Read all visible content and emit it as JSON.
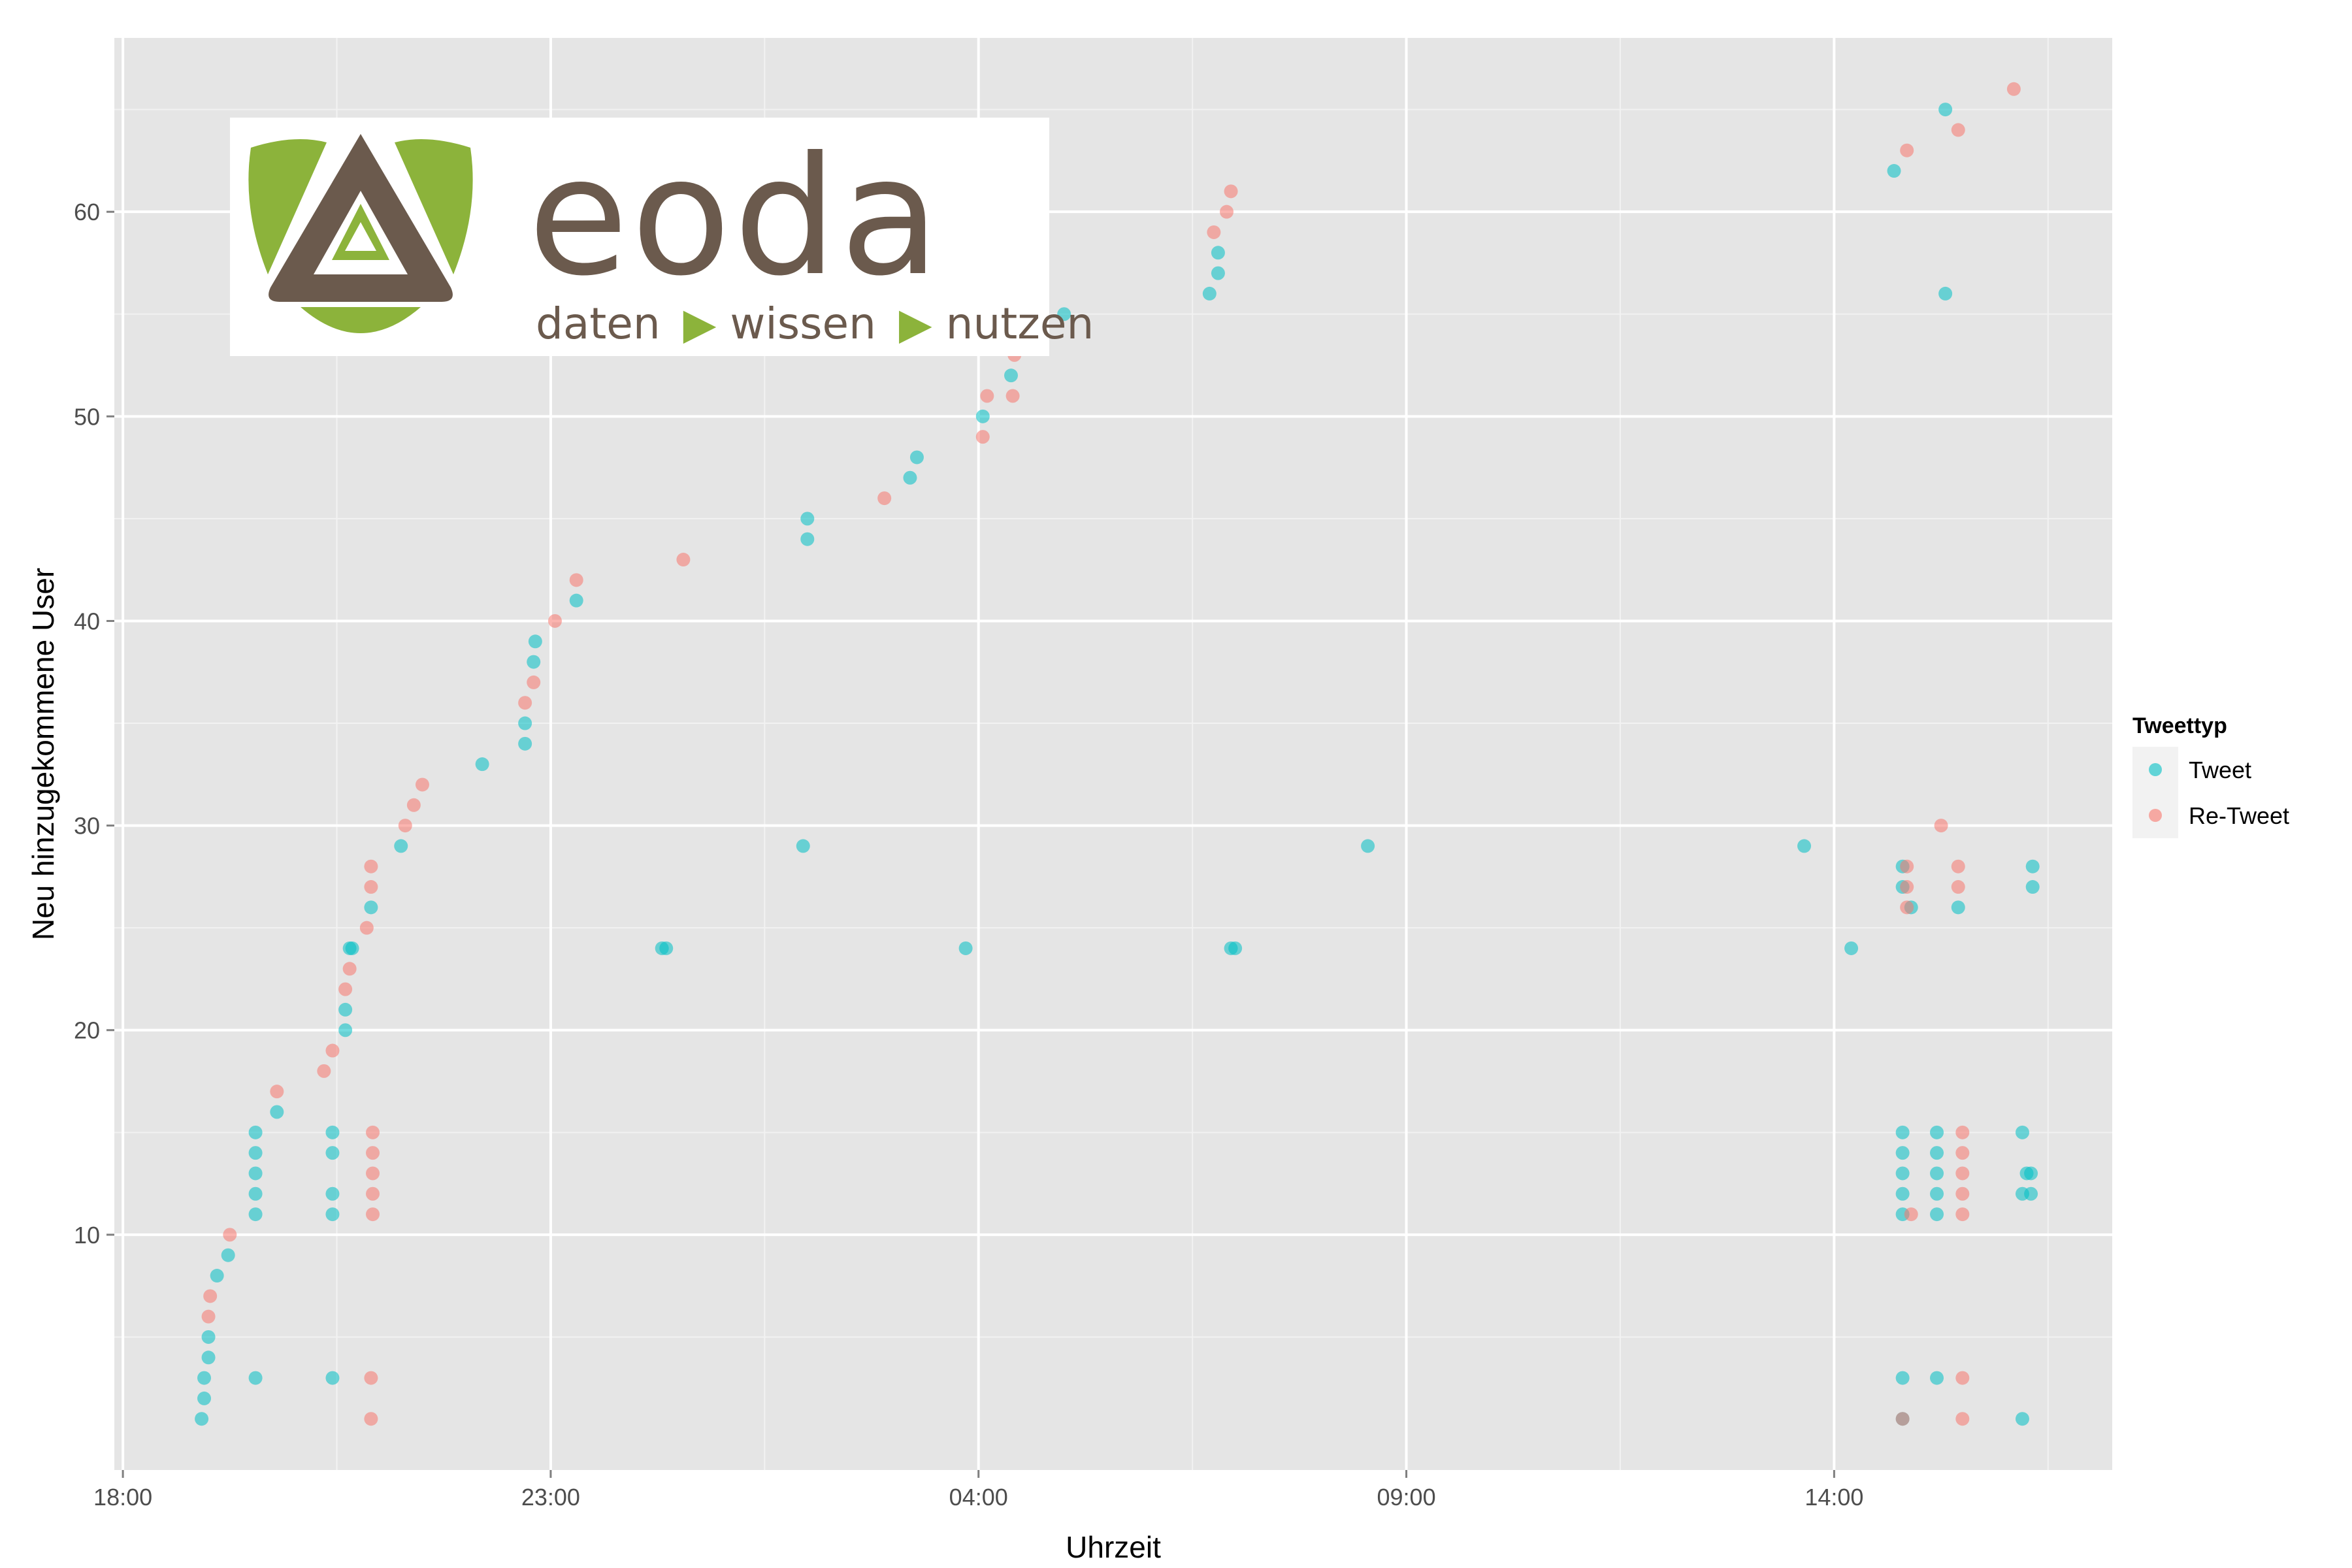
{
  "colors": {
    "panel_bg": "#e5e5e5",
    "grid_major": "#ffffff",
    "grid_minor": "#f2f2f2",
    "tweet": "#00bfc4",
    "retweet": "#f8766d",
    "logo_green": "#8cb33b",
    "logo_brown": "#6b5a4d"
  },
  "logo": {
    "word": "eoda",
    "tagline": [
      "daten",
      "wissen",
      "nutzen"
    ]
  },
  "chart_data": {
    "type": "scatter",
    "xlabel": "Uhrzeit",
    "ylabel": "Neu hinzugekommene User",
    "x_unit": "hours after 18:00 (plot starts the evening before)",
    "xlim": [
      -0.1,
      23.25
    ],
    "ylim": [
      -1.5,
      68.5
    ],
    "x_ticks": [
      0,
      5,
      10,
      15,
      20
    ],
    "x_tick_labels": [
      "18:00",
      "23:00",
      "04:00",
      "09:00",
      "14:00"
    ],
    "y_ticks": [
      10,
      20,
      30,
      40,
      50,
      60
    ],
    "y_tick_labels": [
      "10",
      "20",
      "30",
      "40",
      "50",
      "60"
    ],
    "grid": true,
    "legend": {
      "title": "Tweettyp",
      "position": "right",
      "entries": [
        "Tweet",
        "Re-Tweet"
      ]
    },
    "series": [
      {
        "name": "Tweet",
        "color": "#00bfc4",
        "points": [
          [
            0.92,
            1
          ],
          [
            0.95,
            2
          ],
          [
            0.95,
            3
          ],
          [
            1.0,
            4
          ],
          [
            1.0,
            5
          ],
          [
            1.1,
            8
          ],
          [
            1.23,
            9
          ],
          [
            1.55,
            3
          ],
          [
            1.55,
            11
          ],
          [
            1.55,
            12
          ],
          [
            1.55,
            13
          ],
          [
            1.55,
            14
          ],
          [
            1.55,
            15
          ],
          [
            1.8,
            16
          ],
          [
            2.45,
            3
          ],
          [
            2.45,
            11
          ],
          [
            2.45,
            12
          ],
          [
            2.45,
            14
          ],
          [
            2.45,
            15
          ],
          [
            2.6,
            20
          ],
          [
            2.6,
            21
          ],
          [
            2.65,
            24
          ],
          [
            2.68,
            24
          ],
          [
            2.9,
            26
          ],
          [
            3.25,
            29
          ],
          [
            4.2,
            33
          ],
          [
            4.7,
            34
          ],
          [
            4.7,
            35
          ],
          [
            4.8,
            38
          ],
          [
            4.82,
            39
          ],
          [
            5.3,
            41
          ],
          [
            6.3,
            24
          ],
          [
            6.35,
            24
          ],
          [
            7.95,
            29
          ],
          [
            8.0,
            44
          ],
          [
            8.0,
            45
          ],
          [
            9.2,
            47
          ],
          [
            9.28,
            48
          ],
          [
            9.85,
            24
          ],
          [
            12.95,
            24
          ],
          [
            13.0,
            24
          ],
          [
            14.55,
            29
          ],
          [
            10.05,
            50
          ],
          [
            10.38,
            52
          ],
          [
            11.0,
            55
          ],
          [
            12.7,
            56
          ],
          [
            12.8,
            57
          ],
          [
            12.8,
            58
          ],
          [
            19.65,
            29
          ],
          [
            20.2,
            24
          ],
          [
            20.7,
            62
          ],
          [
            21.3,
            65
          ],
          [
            21.3,
            56
          ],
          [
            20.8,
            1
          ],
          [
            20.8,
            3
          ],
          [
            20.8,
            11
          ],
          [
            20.8,
            12
          ],
          [
            20.8,
            13
          ],
          [
            20.8,
            14
          ],
          [
            20.8,
            15
          ],
          [
            20.8,
            27
          ],
          [
            20.8,
            28
          ],
          [
            20.9,
            26
          ],
          [
            21.2,
            3
          ],
          [
            21.2,
            11
          ],
          [
            21.2,
            12
          ],
          [
            21.2,
            13
          ],
          [
            21.2,
            14
          ],
          [
            21.2,
            15
          ],
          [
            21.45,
            26
          ],
          [
            22.2,
            1
          ],
          [
            22.2,
            12
          ],
          [
            22.2,
            15
          ],
          [
            22.25,
            13
          ],
          [
            22.3,
            12
          ],
          [
            22.3,
            13
          ],
          [
            22.32,
            27
          ],
          [
            22.32,
            28
          ]
        ]
      },
      {
        "name": "Re-Tweet",
        "color": "#f8766d",
        "points": [
          [
            1.0,
            6
          ],
          [
            1.02,
            7
          ],
          [
            1.25,
            10
          ],
          [
            1.8,
            17
          ],
          [
            2.35,
            18
          ],
          [
            2.45,
            19
          ],
          [
            2.6,
            22
          ],
          [
            2.65,
            23
          ],
          [
            2.85,
            25
          ],
          [
            2.9,
            27
          ],
          [
            2.9,
            28
          ],
          [
            2.9,
            1
          ],
          [
            2.9,
            3
          ],
          [
            2.92,
            11
          ],
          [
            2.92,
            12
          ],
          [
            2.92,
            13
          ],
          [
            2.92,
            14
          ],
          [
            2.92,
            15
          ],
          [
            3.3,
            30
          ],
          [
            3.4,
            31
          ],
          [
            3.5,
            32
          ],
          [
            4.7,
            36
          ],
          [
            4.8,
            37
          ],
          [
            5.05,
            40
          ],
          [
            5.3,
            42
          ],
          [
            6.55,
            43
          ],
          [
            8.9,
            46
          ],
          [
            10.05,
            49
          ],
          [
            10.1,
            51
          ],
          [
            10.42,
            53
          ],
          [
            10.42,
            54
          ],
          [
            10.4,
            51
          ],
          [
            12.75,
            59
          ],
          [
            12.9,
            60
          ],
          [
            12.95,
            61
          ],
          [
            20.8,
            1
          ],
          [
            20.85,
            26
          ],
          [
            20.85,
            27
          ],
          [
            20.85,
            28
          ],
          [
            20.85,
            63
          ],
          [
            20.9,
            11
          ],
          [
            21.25,
            30
          ],
          [
            21.5,
            11
          ],
          [
            21.5,
            12
          ],
          [
            21.5,
            13
          ],
          [
            21.5,
            14
          ],
          [
            21.5,
            15
          ],
          [
            21.45,
            27
          ],
          [
            21.45,
            28
          ],
          [
            21.45,
            64
          ],
          [
            21.5,
            1
          ],
          [
            21.5,
            3
          ],
          [
            22.1,
            66
          ]
        ]
      }
    ]
  }
}
